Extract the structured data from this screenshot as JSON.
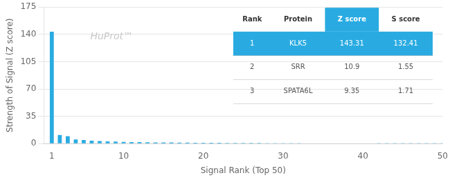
{
  "chart_data": {
    "type": "bar",
    "xlabel": "Signal Rank (Top 50)",
    "ylabel": "Strength of Signal (Z score)",
    "x": [
      1,
      2,
      3,
      4,
      5,
      6,
      7,
      8,
      9,
      10,
      11,
      12,
      13,
      14,
      15,
      16,
      17,
      18,
      19,
      20,
      21,
      22,
      23,
      24,
      25,
      26,
      27,
      28,
      29,
      30,
      31,
      32,
      33,
      34,
      35,
      36,
      37,
      38,
      39,
      40,
      41,
      42,
      43,
      44,
      45,
      46,
      47,
      48,
      49,
      50
    ],
    "values": [
      143.31,
      10.9,
      9.35,
      5.2,
      4.5,
      3.8,
      3.2,
      2.8,
      2.5,
      2.2,
      2.0,
      1.85,
      1.7,
      1.6,
      1.5,
      1.4,
      1.3,
      1.2,
      1.15,
      1.1,
      1.05,
      1.0,
      0.95,
      0.9,
      0.85,
      0.8,
      0.75,
      0.7,
      0.65,
      0.6,
      0.55,
      0.52,
      0.5,
      0.48,
      0.45,
      0.43,
      0.4,
      0.38,
      0.35,
      0.33,
      0.3,
      0.28,
      0.25,
      0.23,
      0.2,
      0.18,
      0.15,
      0.13,
      0.1,
      0.08
    ],
    "color": "#29ABE2",
    "xlim": [
      0,
      50
    ],
    "xticks": [
      1,
      10,
      20,
      30,
      40,
      50
    ],
    "ylim": [
      0,
      175
    ],
    "yticks": [
      0,
      35,
      70,
      105,
      140,
      175
    ],
    "grid": "y",
    "legend": false,
    "annotations": [
      {
        "text": "HuProt™",
        "color": "#c8c8c8"
      }
    ],
    "table": {
      "headers": [
        "Rank",
        "Protein",
        "Z score",
        "S score"
      ],
      "rows": [
        [
          "1",
          "KLK5",
          "143.31",
          "132.41"
        ],
        [
          "2",
          "SRR",
          "10.9",
          "1.55"
        ],
        [
          "3",
          "SPATA6L",
          "9.35",
          "1.71"
        ]
      ],
      "highlight_row": 0,
      "highlight_column": 2,
      "highlight_color": "#29ABE2"
    }
  }
}
